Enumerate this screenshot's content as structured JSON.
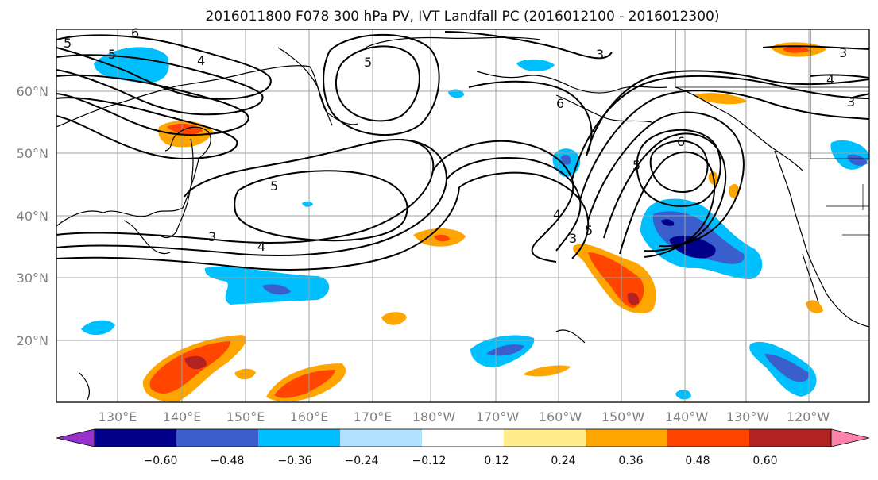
{
  "title": "2016011800 F078 300 hPa PV, IVT Landfall PC (2016012100 - 2016012300)",
  "map": {
    "latitude_labels": [
      "60°N",
      "50°N",
      "40°N",
      "30°N",
      "20°N"
    ],
    "longitude_labels": [
      "130°E",
      "140°E",
      "150°E",
      "160°E",
      "170°E",
      "180°W",
      "170°W",
      "160°W",
      "150°W",
      "140°W",
      "130°W",
      "120°W"
    ],
    "contour_labels": [
      "6",
      "5",
      "4",
      "5",
      "5",
      "3",
      "4",
      "3",
      "3",
      "6",
      "6",
      "5",
      "4",
      "5",
      "3",
      "3",
      "4",
      "5"
    ],
    "land_color": "#ffffff",
    "coast_color": "#000000",
    "grid_color": "#a0a0a0"
  },
  "colorbar": {
    "tick_labels": [
      "−0.60",
      "−0.48",
      "−0.36",
      "−0.24",
      "−0.12",
      "0.12",
      "0.24",
      "0.36",
      "0.48",
      "0.60"
    ],
    "colors": [
      "#9932cc",
      "#00008b",
      "#3a5fcd",
      "#00bfff",
      "#b0e2ff",
      "#ffffff",
      "#ffec8b",
      "#ffa500",
      "#ff4500",
      "#b22222",
      "#ff82ab"
    ]
  }
}
